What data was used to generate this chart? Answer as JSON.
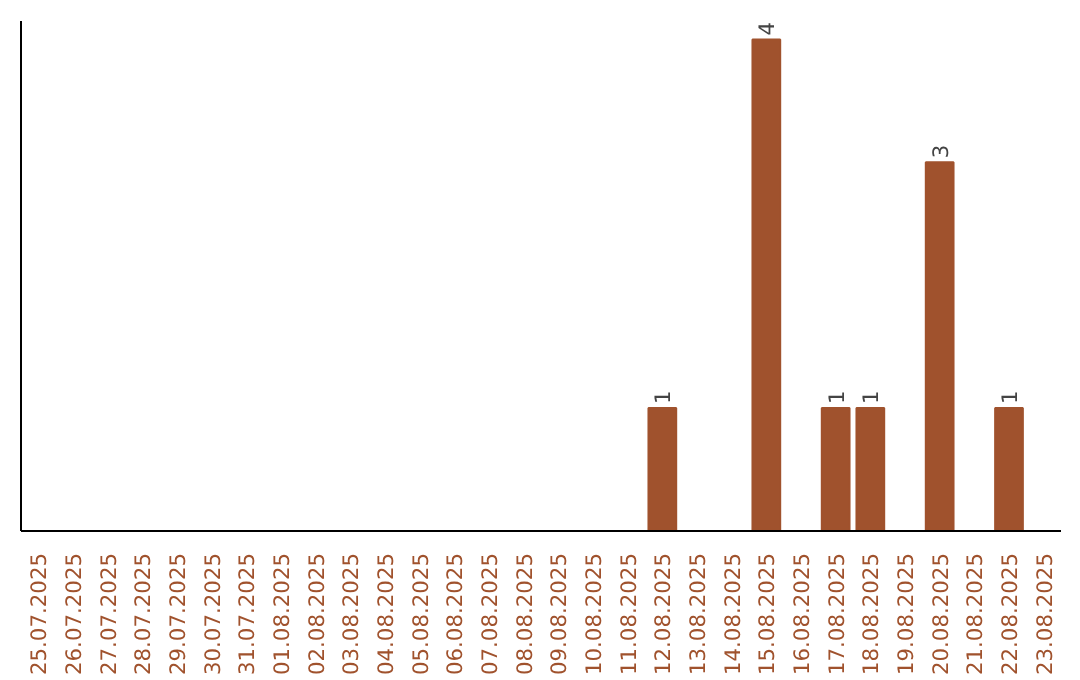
{
  "chart_data": {
    "type": "bar",
    "categories": [
      "25.07.2025",
      "26.07.2025",
      "27.07.2025",
      "28.07.2025",
      "29.07.2025",
      "30.07.2025",
      "31.07.2025",
      "01.08.2025",
      "02.08.2025",
      "03.08.2025",
      "04.08.2025",
      "05.08.2025",
      "06.08.2025",
      "07.08.2025",
      "08.08.2025",
      "09.08.2025",
      "10.08.2025",
      "11.08.2025",
      "12.08.2025",
      "13.08.2025",
      "14.08.2025",
      "15.08.2025",
      "16.08.2025",
      "17.08.2025",
      "18.08.2025",
      "19.08.2025",
      "20.08.2025",
      "21.08.2025",
      "22.08.2025",
      "23.08.2025"
    ],
    "values": [
      null,
      null,
      null,
      null,
      null,
      null,
      null,
      null,
      null,
      null,
      null,
      null,
      null,
      null,
      null,
      null,
      null,
      null,
      1,
      null,
      null,
      4,
      null,
      1,
      1,
      null,
      3,
      null,
      1,
      null
    ],
    "data_labels": true,
    "color": "#a0522d",
    "ylim": [
      0,
      4.15
    ],
    "grid": false
  }
}
